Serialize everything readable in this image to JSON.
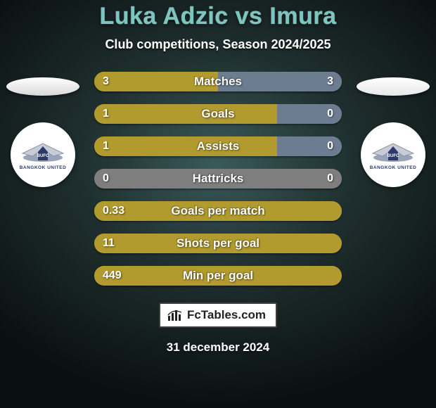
{
  "title": "Luka Adzic vs Imura",
  "subtitle": "Club competitions, Season 2024/2025",
  "date": "31 december 2024",
  "footer_label": "FcTables.com",
  "colors": {
    "olive": "#b19a2e",
    "steel": "#6d7d91",
    "gray": "#7e7e7e",
    "oval_left": "#d9d9d9",
    "oval_right": "#e8e8e8",
    "title": "#7cc6c0",
    "badge_inner": "#2b3a6a"
  },
  "club_badge_text": "BANGKOK UNITED",
  "bars": [
    {
      "label": "Matches",
      "left_value": "3",
      "right_value": "3",
      "base_color": "#b19a2e",
      "left_fill": {
        "color": "#b19a2e",
        "width_pct": 50
      },
      "right_fill": {
        "color": "#6d7d91",
        "width_pct": 50
      }
    },
    {
      "label": "Goals",
      "left_value": "1",
      "right_value": "0",
      "base_color": "#b19a2e",
      "left_fill": {
        "color": "#b19a2e",
        "width_pct": 74
      },
      "right_fill": {
        "color": "#6d7d91",
        "width_pct": 26
      }
    },
    {
      "label": "Assists",
      "left_value": "1",
      "right_value": "0",
      "base_color": "#b19a2e",
      "left_fill": {
        "color": "#b19a2e",
        "width_pct": 74
      },
      "right_fill": {
        "color": "#6d7d91",
        "width_pct": 26
      }
    },
    {
      "label": "Hattricks",
      "left_value": "0",
      "right_value": "0",
      "base_color": "#7e7e7e",
      "left_fill": {
        "color": "#7e7e7e",
        "width_pct": 100
      },
      "right_fill": {
        "color": "#7e7e7e",
        "width_pct": 0
      }
    },
    {
      "label": "Goals per match",
      "left_value": "0.33",
      "right_value": "",
      "base_color": "#b19a2e",
      "left_fill": {
        "color": "#b19a2e",
        "width_pct": 100
      },
      "right_fill": {
        "color": "#b19a2e",
        "width_pct": 0
      }
    },
    {
      "label": "Shots per goal",
      "left_value": "11",
      "right_value": "",
      "base_color": "#b19a2e",
      "left_fill": {
        "color": "#b19a2e",
        "width_pct": 100
      },
      "right_fill": {
        "color": "#b19a2e",
        "width_pct": 0
      }
    },
    {
      "label": "Min per goal",
      "left_value": "449",
      "right_value": "",
      "base_color": "#b19a2e",
      "left_fill": {
        "color": "#b19a2e",
        "width_pct": 100
      },
      "right_fill": {
        "color": "#b19a2e",
        "width_pct": 0
      }
    }
  ]
}
